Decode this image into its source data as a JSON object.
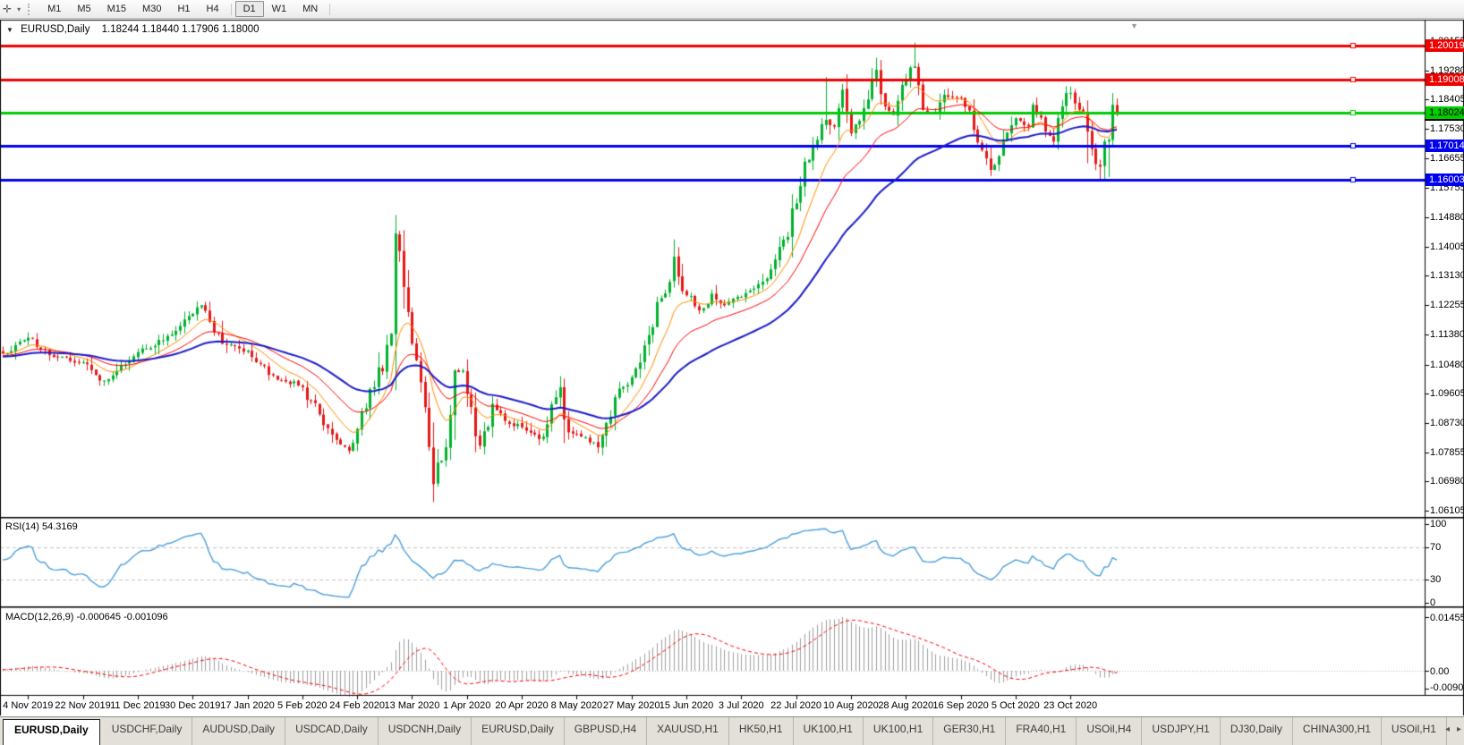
{
  "toolbar": {
    "cursor_glyph": "✛",
    "dropdown_glyph": "▾",
    "timeframes": [
      "M1",
      "M5",
      "M15",
      "M30",
      "H1",
      "H4",
      "D1",
      "W1",
      "MN"
    ],
    "active_timeframe": "D1"
  },
  "chart": {
    "title_arrow": "▼",
    "symbol_label": "EURUSD,Daily",
    "ohlc_text": "1.18244 1.18440 1.17906 1.18000",
    "shift_marker_glyph": "▼",
    "price_ticks": [
      "1.20155",
      "1.19280",
      "1.18405",
      "1.17530",
      "1.16655",
      "1.15755",
      "1.14880",
      "1.14005",
      "1.13130",
      "1.12255",
      "1.11380",
      "1.10480",
      "1.09605",
      "1.08730",
      "1.07855",
      "1.06980",
      "1.06105"
    ],
    "hlines": [
      {
        "price": "1.20019",
        "value": 1.20019,
        "color": "#ee0000",
        "text_color": "#ffffff"
      },
      {
        "price": "1.19008",
        "value": 1.19008,
        "color": "#ee0000",
        "text_color": "#ffffff"
      },
      {
        "price": "1.18024",
        "value": 1.18024,
        "color": "#00cc00",
        "text_color": "#000000"
      },
      {
        "price": "1.17014",
        "value": 1.17014,
        "color": "#0000ee",
        "text_color": "#ffffff"
      },
      {
        "price": "1.16003",
        "value": 1.16003,
        "color": "#0000ee",
        "text_color": "#ffffff"
      }
    ],
    "date_ticks": [
      "4 Nov 2019",
      "22 Nov 2019",
      "11 Dec 2019",
      "30 Dec 2019",
      "17 Jan 2020",
      "5 Feb 2020",
      "24 Feb 2020",
      "13 Mar 2020",
      "1 Apr 2020",
      "20 Apr 2020",
      "8 May 2020",
      "27 May 2020",
      "15 Jun 2020",
      "3 Jul 2020",
      "22 Jul 2020",
      "10 Aug 2020",
      "28 Aug 2020",
      "16 Sep 2020",
      "5 Oct 2020",
      "23 Oct 2020"
    ]
  },
  "rsi": {
    "label": "RSI(14) 54.3169",
    "ticks": [
      "100",
      "70",
      "30",
      "0"
    ],
    "line_color": "#4da0dc"
  },
  "macd": {
    "label": "MACD(12,26,9) -0.000645 -0.001096",
    "ticks": [
      "0.014556",
      "0.00",
      "-0.009001"
    ]
  },
  "tabs": {
    "items": [
      "EURUSD,Daily",
      "USDCHF,Daily",
      "AUDUSD,Daily",
      "USDCAD,Daily",
      "USDCNH,Daily",
      "EURUSD,Daily",
      "GBPUSD,H4",
      "XAUUSD,H1",
      "HK50,H1",
      "UK100,H1",
      "UK100,H1",
      "GER30,H1",
      "FRA40,H1",
      "USOil,H4",
      "USDJPY,H1",
      "DJ30,Daily",
      "CHINA300,H1",
      "USOil,H1"
    ],
    "active_index": 0,
    "scroll_left_glyph": "◂",
    "scroll_right_glyph": "▸"
  },
  "chart_data": {
    "type": "candlestick",
    "symbol": "EURUSD",
    "timeframe": "Daily",
    "last_candle": {
      "open": 1.18244,
      "high": 1.1844,
      "low": 1.17906,
      "close": 1.18
    },
    "price_axis_range": [
      1.06105,
      1.20155
    ],
    "horizontal_levels": [
      1.20019,
      1.19008,
      1.18024,
      1.17014,
      1.16003
    ],
    "candles_visible": 265,
    "candle_colors": {
      "up": "#00b22d",
      "down": "#e51717"
    },
    "close_anchors": [
      [
        0,
        1.108
      ],
      [
        6,
        1.1128
      ],
      [
        12,
        1.107
      ],
      [
        19,
        1.1055
      ],
      [
        23,
        1.1
      ],
      [
        26,
        1.1015
      ],
      [
        32,
        1.1085
      ],
      [
        38,
        1.112
      ],
      [
        45,
        1.12
      ],
      [
        47,
        1.1225
      ],
      [
        52,
        1.111
      ],
      [
        58,
        1.109
      ],
      [
        64,
        1.1015
      ],
      [
        71,
        1.098
      ],
      [
        78,
        1.0838
      ],
      [
        82,
        1.079
      ],
      [
        84,
        1.0855
      ],
      [
        88,
        1.098
      ],
      [
        92,
        1.114
      ],
      [
        93,
        1.144
      ],
      [
        95,
        1.128
      ],
      [
        97,
        1.111
      ],
      [
        100,
        1.092
      ],
      [
        102,
        1.069
      ],
      [
        105,
        1.08
      ],
      [
        107,
        1.103
      ],
      [
        109,
        1.103
      ],
      [
        110,
        1.096
      ],
      [
        113,
        1.0805
      ],
      [
        116,
        1.093
      ],
      [
        120,
        1.087
      ],
      [
        123,
        1.086
      ],
      [
        127,
        1.0825
      ],
      [
        131,
        1.095
      ],
      [
        132,
        1.098
      ],
      [
        134,
        1.0845
      ],
      [
        136,
        1.084
      ],
      [
        139,
        1.0815
      ],
      [
        141,
        1.08
      ],
      [
        145,
        1.095
      ],
      [
        149,
        1.101
      ],
      [
        152,
        1.1105
      ],
      [
        155,
        1.1235
      ],
      [
        158,
        1.1295
      ],
      [
        159,
        1.137
      ],
      [
        162,
        1.1255
      ],
      [
        165,
        1.121
      ],
      [
        168,
        1.126
      ],
      [
        171,
        1.1225
      ],
      [
        175,
        1.125
      ],
      [
        178,
        1.1275
      ],
      [
        181,
        1.1305
      ],
      [
        184,
        1.14
      ],
      [
        186,
        1.143
      ],
      [
        188,
        1.153
      ],
      [
        190,
        1.1655
      ],
      [
        193,
        1.172
      ],
      [
        195,
        1.178
      ],
      [
        197,
        1.176
      ],
      [
        199,
        1.187
      ],
      [
        201,
        1.174
      ],
      [
        204,
        1.1815
      ],
      [
        207,
        1.193
      ],
      [
        209,
        1.182
      ],
      [
        211,
        1.1795
      ],
      [
        214,
        1.19
      ],
      [
        216,
        1.194
      ],
      [
        218,
        1.181
      ],
      [
        220,
        1.18
      ],
      [
        223,
        1.1855
      ],
      [
        227,
        1.1845
      ],
      [
        230,
        1.175
      ],
      [
        233,
        1.1665
      ],
      [
        234,
        1.163
      ],
      [
        237,
        1.172
      ],
      [
        240,
        1.1785
      ],
      [
        243,
        1.176
      ],
      [
        244,
        1.1825
      ],
      [
        247,
        1.1745
      ],
      [
        249,
        1.1715
      ],
      [
        251,
        1.182
      ],
      [
        252,
        1.186
      ],
      [
        253,
        1.186
      ],
      [
        255,
        1.181
      ],
      [
        257,
        1.1745
      ],
      [
        259,
        1.1648
      ],
      [
        260,
        1.164
      ],
      [
        261,
        1.1715
      ],
      [
        262,
        1.172
      ],
      [
        263,
        1.1825
      ],
      [
        264,
        1.18
      ]
    ],
    "wick_overrides": {
      "93": {
        "h": 1.1495
      },
      "102": {
        "l": 1.0636
      },
      "159": {
        "h": 1.1422
      },
      "195": {
        "h": 1.1908
      },
      "207": {
        "h": 1.1966
      },
      "216": {
        "h": 1.2011
      },
      "234": {
        "l": 1.1612
      },
      "252": {
        "h": 1.1881
      },
      "257": {
        "l": 1.165
      },
      "260": {
        "l": 1.1603
      },
      "262": {
        "l": 1.1609
      },
      "263": {
        "h": 1.186
      }
    },
    "indicators": {
      "moving_averages": [
        {
          "period": 10,
          "color": "#ff8c00",
          "width": 1
        },
        {
          "period": 22,
          "color": "#ff0000",
          "width": 1
        },
        {
          "period": 45,
          "color": "#1b1bc8",
          "width": 2
        }
      ],
      "rsi": {
        "period": 14,
        "current": 54.3169,
        "levels": [
          70,
          30
        ],
        "range": [
          0,
          100
        ]
      },
      "macd": {
        "fast": 12,
        "slow": 26,
        "signal": 9,
        "current_macd": -0.000645,
        "current_signal": -0.001096,
        "axis_max": 0.014556,
        "axis_min": -0.009001,
        "histogram_color": "#a0a0a0",
        "signal_color": "#ff0000"
      }
    }
  }
}
